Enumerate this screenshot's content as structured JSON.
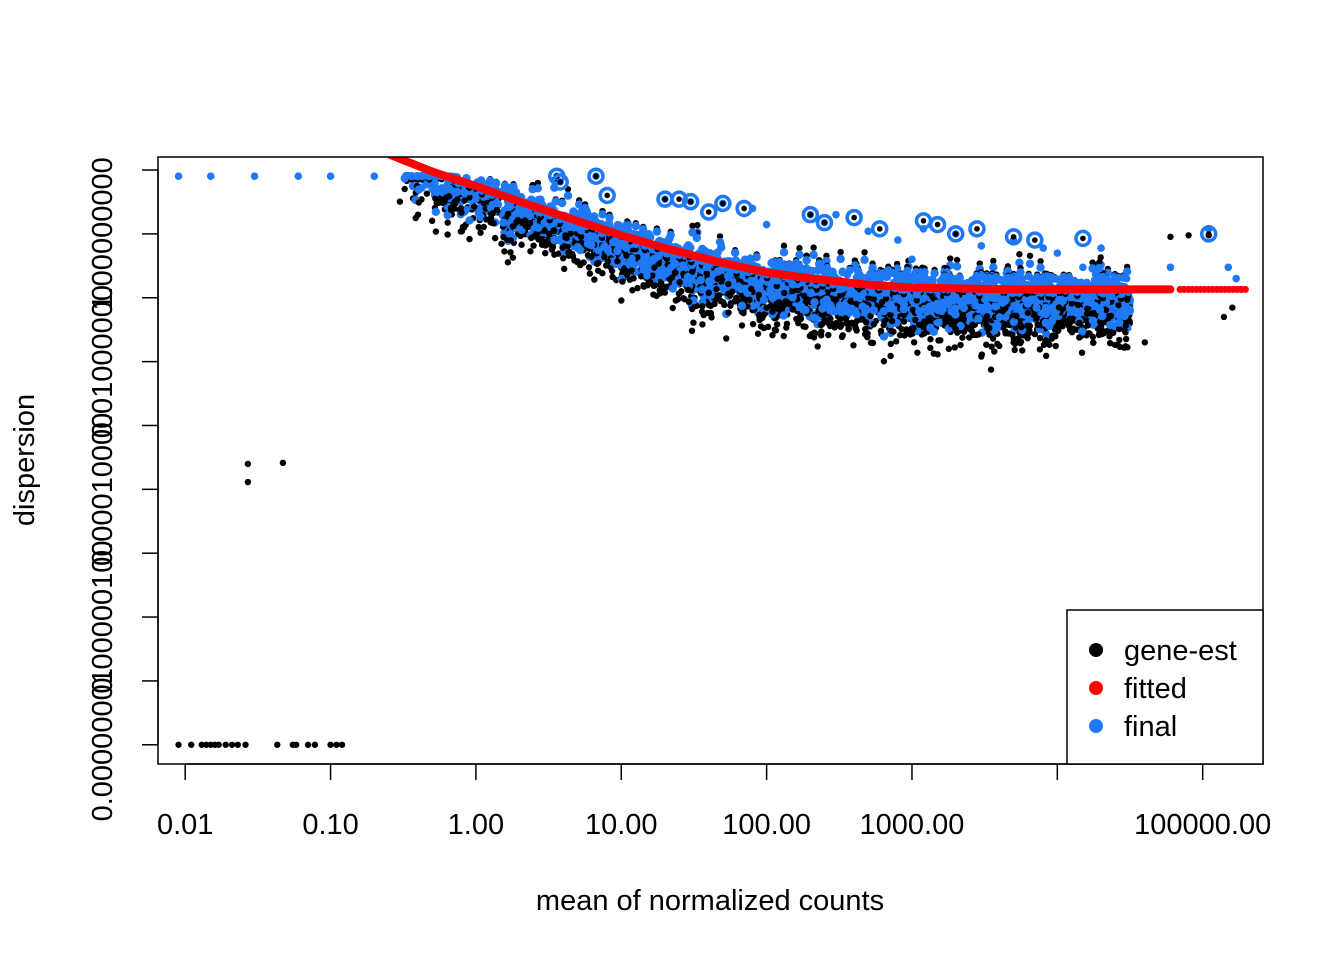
{
  "chart_data": {
    "type": "scatter",
    "title": "",
    "xlabel": "mean of normalized counts",
    "ylabel": "dispersion",
    "x_scale": "log",
    "y_scale": "log",
    "xlim": [
      0.0065,
      260000
    ],
    "ylim": [
      5e-09,
      16
    ],
    "x_ticks": [
      {
        "value": 0.01,
        "label": "0.01"
      },
      {
        "value": 0.1,
        "label": "0.10"
      },
      {
        "value": 1,
        "label": "1.00"
      },
      {
        "value": 10,
        "label": "10.00"
      },
      {
        "value": 100,
        "label": "100.00"
      },
      {
        "value": 1000,
        "label": "1000.00"
      },
      {
        "value": 10000,
        "label": ""
      },
      {
        "value": 100000,
        "label": "100000.00"
      }
    ],
    "y_ticks": [
      {
        "value": 1e-08,
        "label": "0.00000001"
      },
      {
        "value": 1e-07,
        "label": ""
      },
      {
        "value": 1e-06,
        "label": "0.00000100"
      },
      {
        "value": 1e-05,
        "label": ""
      },
      {
        "value": 0.0001,
        "label": "0.00010000"
      },
      {
        "value": 0.001,
        "label": ""
      },
      {
        "value": 0.01,
        "label": "0.01000000"
      },
      {
        "value": 0.1,
        "label": ""
      },
      {
        "value": 1,
        "label": "1.00000000"
      },
      {
        "value": 10,
        "label": ""
      }
    ],
    "legend": {
      "position": "bottom-right",
      "entries": [
        {
          "label": "gene-est",
          "color": "#000000"
        },
        {
          "label": "fitted",
          "color": "#ff0000"
        },
        {
          "label": "final",
          "color": "#1f78f4"
        }
      ]
    },
    "series": [
      {
        "name": "gene-est",
        "color": "#000000",
        "points": [
          [
            0.027,
            0.00025
          ],
          [
            0.047,
            0.00026
          ],
          [
            0.027,
            0.00013
          ],
          [
            0.009,
            1e-08
          ],
          [
            0.011,
            1e-08
          ],
          [
            0.013,
            1e-08
          ],
          [
            0.014,
            1e-08
          ],
          [
            0.015,
            1e-08
          ],
          [
            0.016,
            1e-08
          ],
          [
            0.017,
            1e-08
          ],
          [
            0.019,
            1e-08
          ],
          [
            0.021,
            1e-08
          ],
          [
            0.023,
            1e-08
          ],
          [
            0.026,
            1e-08
          ],
          [
            0.043,
            1e-08
          ],
          [
            0.055,
            1e-08
          ],
          [
            0.058,
            1e-08
          ],
          [
            0.07,
            1e-08
          ],
          [
            0.078,
            1e-08
          ],
          [
            0.1,
            1e-08
          ],
          [
            0.11,
            1e-08
          ],
          [
            0.12,
            1e-08
          ],
          [
            0.3,
            3.2
          ],
          [
            0.4,
            2.0
          ],
          [
            0.5,
            1.6
          ],
          [
            0.8,
            1.1
          ],
          [
            1.5,
            0.7
          ],
          [
            3,
            0.5
          ],
          [
            6,
            0.3
          ],
          [
            15,
            0.22
          ],
          [
            40,
            0.12
          ],
          [
            100,
            0.07
          ],
          [
            300,
            0.04
          ],
          [
            1000,
            0.03
          ],
          [
            1500,
            0.013
          ],
          [
            3000,
            0.012
          ],
          [
            3500,
            0.0075
          ],
          [
            5000,
            0.02
          ],
          [
            10000,
            0.03
          ],
          [
            20000,
            0.03
          ],
          [
            40000,
            0.02
          ],
          [
            60000,
            0.9
          ],
          [
            80000,
            0.95
          ],
          [
            110000,
            0.95
          ],
          [
            140000,
            0.05
          ],
          [
            160000,
            0.07
          ]
        ]
      },
      {
        "name": "fitted",
        "color": "#ff0000",
        "points": [
          [
            0.22,
            20
          ],
          [
            0.3,
            15
          ],
          [
            0.5,
            9.5
          ],
          [
            1,
            5.6
          ],
          [
            2,
            3.2
          ],
          [
            5,
            1.6
          ],
          [
            10,
            0.95
          ],
          [
            20,
            0.6
          ],
          [
            50,
            0.35
          ],
          [
            100,
            0.25
          ],
          [
            200,
            0.2
          ],
          [
            500,
            0.16
          ],
          [
            1000,
            0.145
          ],
          [
            2000,
            0.14
          ],
          [
            5000,
            0.135
          ],
          [
            10000,
            0.135
          ],
          [
            30000,
            0.135
          ],
          [
            60000,
            0.135
          ],
          [
            100000,
            0.135
          ],
          [
            200000,
            0.135
          ]
        ]
      },
      {
        "name": "final",
        "color": "#1f78f4",
        "points": [
          [
            0.009,
            8
          ],
          [
            0.015,
            8
          ],
          [
            0.03,
            8
          ],
          [
            0.06,
            8
          ],
          [
            0.1,
            8
          ],
          [
            0.2,
            8
          ],
          [
            0.4,
            8
          ],
          [
            0.6,
            8
          ],
          [
            0.5,
            5
          ],
          [
            1,
            3.5
          ],
          [
            2,
            2.2
          ],
          [
            3.6,
            8
          ],
          [
            3.8,
            6.5
          ],
          [
            6.7,
            8
          ],
          [
            10,
            1.0
          ],
          [
            15,
            0.22
          ],
          [
            20,
            3.5
          ],
          [
            30,
            3.2
          ],
          [
            50,
            3
          ],
          [
            80,
            2.5
          ],
          [
            100,
            1.4
          ],
          [
            200,
            2
          ],
          [
            250,
            1.5
          ],
          [
            300,
            2.0
          ],
          [
            500,
            1.1
          ],
          [
            800,
            0.8
          ],
          [
            1000,
            0.4
          ],
          [
            1200,
            1.2
          ],
          [
            2000,
            1.0
          ],
          [
            3000,
            0.65
          ],
          [
            4000,
            0.05
          ],
          [
            5000,
            0.8
          ],
          [
            8000,
            0.6
          ],
          [
            10000,
            0.5
          ],
          [
            15000,
            0.3
          ],
          [
            20000,
            0.6
          ],
          [
            30000,
            0.2
          ],
          [
            60000,
            0.3
          ],
          [
            110000,
            1.2
          ],
          [
            150000,
            0.3
          ],
          [
            170000,
            0.2
          ]
        ]
      }
    ],
    "outlier_rings": [
      [
        3.6,
        8
      ],
      [
        3.8,
        6.5
      ],
      [
        6.7,
        8
      ],
      [
        8,
        4
      ],
      [
        20,
        3.5
      ],
      [
        25,
        3.5
      ],
      [
        30,
        3.2
      ],
      [
        40,
        2.2
      ],
      [
        50,
        3
      ],
      [
        70,
        2.5
      ],
      [
        200,
        2
      ],
      [
        250,
        1.5
      ],
      [
        400,
        1.8
      ],
      [
        600,
        1.2
      ],
      [
        1200,
        1.6
      ],
      [
        1500,
        1.4
      ],
      [
        2000,
        1.0
      ],
      [
        2800,
        1.2
      ],
      [
        5000,
        0.9
      ],
      [
        7000,
        0.8
      ],
      [
        15000,
        0.85
      ],
      [
        110000,
        1.0
      ]
    ]
  }
}
